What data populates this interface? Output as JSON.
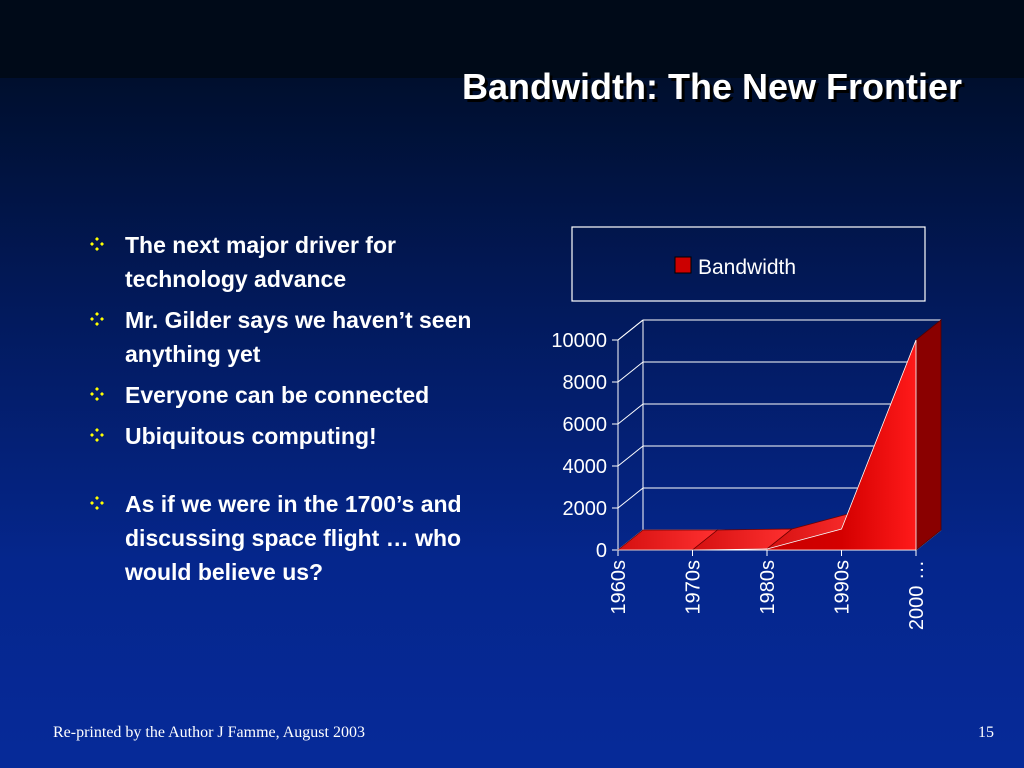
{
  "slide": {
    "title": "Bandwidth: The New Frontier",
    "bullets": [
      "The next major driver for technology advance",
      "Mr. Gilder says we haven’t seen anything yet",
      "Everyone can be connected",
      "Ubiquitous computing!",
      "As if we were in the 1700’s and discussing space flight … who would believe us?"
    ],
    "bullet_icon": "four-diamond-bullet-icon",
    "footer": {
      "credit": "Re-printed by the Author J Famme, August 2003",
      "page_number": "15"
    }
  },
  "colors": {
    "series": "#cc0000",
    "text": "#ffffff",
    "bullet": "#ffff00"
  },
  "chart_data": {
    "type": "area",
    "categories": [
      "1960s",
      "1970s",
      "1980s",
      "1990s",
      "2000 …"
    ],
    "series": [
      {
        "name": "Bandwidth",
        "values": [
          0,
          0,
          50,
          1000,
          10000
        ]
      }
    ],
    "yticks": [
      "10000",
      "8000",
      "6000",
      "4000",
      "2000",
      "0"
    ],
    "ylim": [
      0,
      10000
    ],
    "grid": true,
    "legend": "top",
    "style": "3d"
  }
}
